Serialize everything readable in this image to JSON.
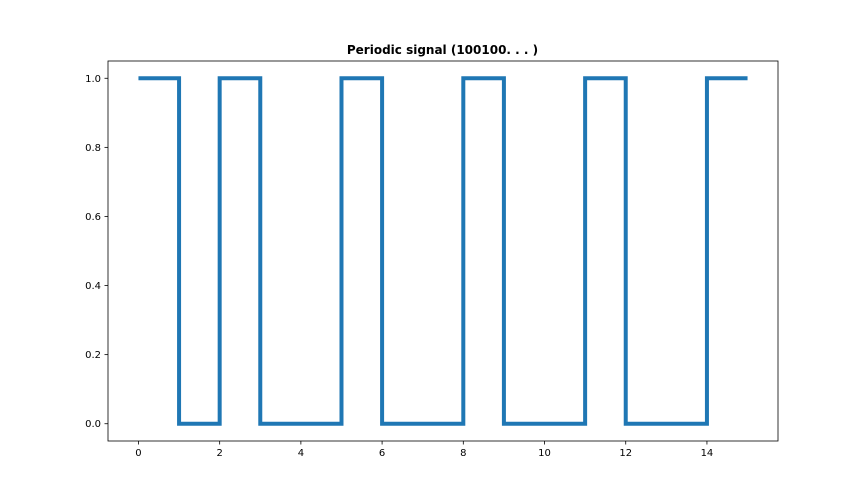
{
  "chart_data": {
    "type": "line",
    "style": "step-post",
    "title": "Periodic signal (100100. . . )",
    "xlabel": "",
    "ylabel": "",
    "xlim": [
      -0.75,
      15.75
    ],
    "ylim": [
      -0.05,
      1.05
    ],
    "x_ticks": [
      0,
      2,
      4,
      6,
      8,
      10,
      12,
      14
    ],
    "x_tick_labels": [
      "0",
      "2",
      "4",
      "6",
      "8",
      "10",
      "12",
      "14"
    ],
    "y_ticks": [
      0.0,
      0.2,
      0.4,
      0.6,
      0.8,
      1.0
    ],
    "y_tick_labels": [
      "0.0",
      "0.2",
      "0.4",
      "0.6",
      "0.8",
      "1.0"
    ],
    "grid": false,
    "legend": "none",
    "series": [
      {
        "color": "#1f77b4",
        "x": [
          0,
          1,
          2,
          3,
          4,
          5,
          6,
          7,
          8,
          9,
          10,
          11,
          12,
          13,
          14,
          15
        ],
        "y": [
          1,
          0,
          1,
          0,
          0,
          1,
          0,
          0,
          1,
          0,
          0,
          1,
          0,
          0,
          1,
          1
        ]
      }
    ]
  }
}
